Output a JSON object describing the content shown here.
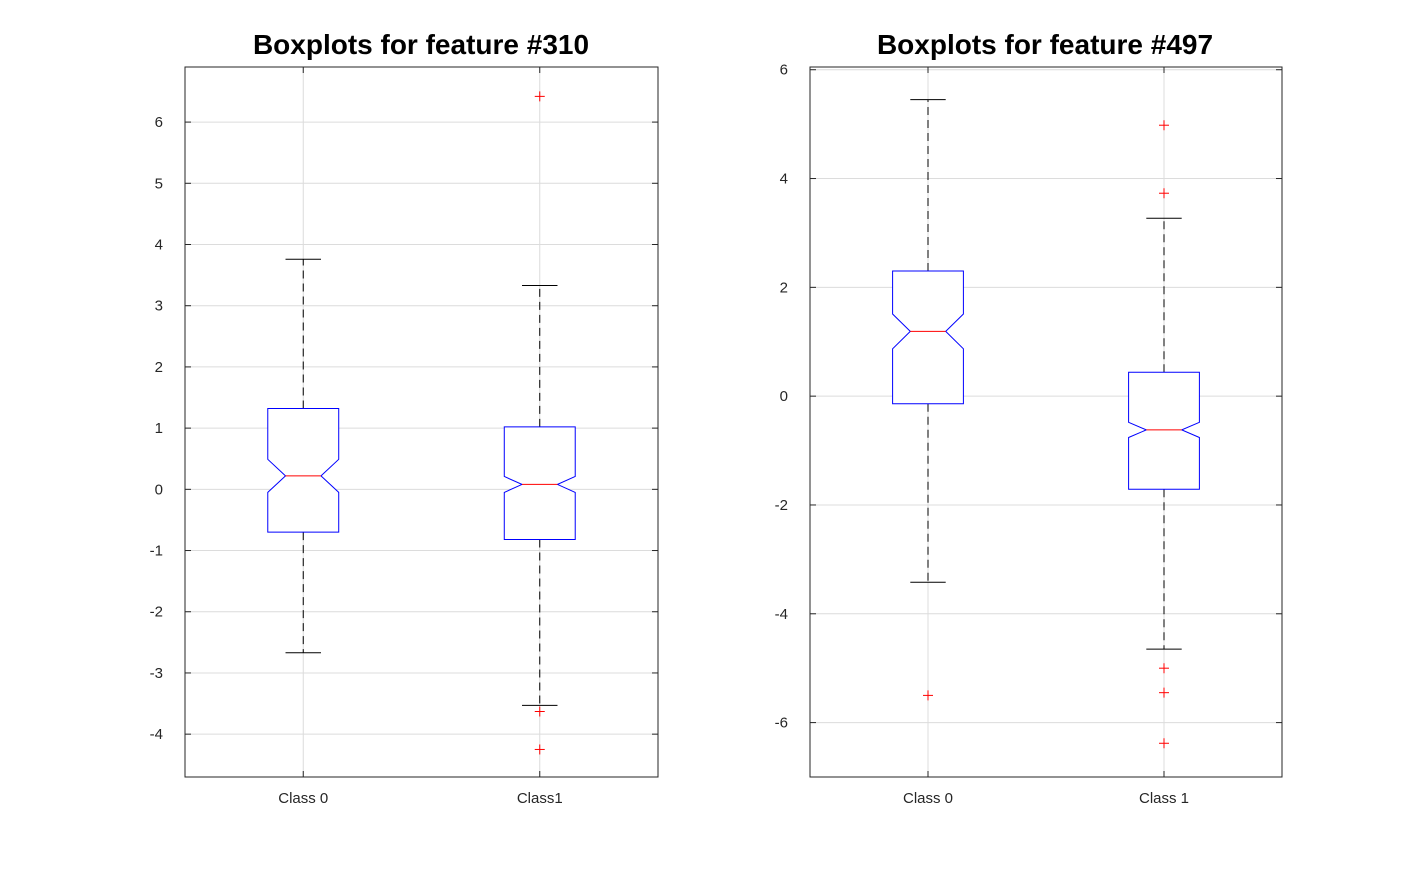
{
  "chart_data": [
    {
      "type": "boxplot",
      "title": "Boxplots for feature #310",
      "xlabel": "",
      "ylabel": "",
      "ylim": [
        -4.7,
        6.9
      ],
      "yticks": [
        -4,
        -3,
        -2,
        -1,
        0,
        1,
        2,
        3,
        4,
        5,
        6
      ],
      "grid": true,
      "notched": true,
      "categories": [
        "Class 0",
        "Class1"
      ],
      "boxes": [
        {
          "category": "Class 0",
          "whisker_low": -2.67,
          "q1": -0.7,
          "notch_low": -0.05,
          "median": 0.22,
          "notch_high": 0.49,
          "q3": 1.32,
          "whisker_high": 3.76,
          "outliers": []
        },
        {
          "category": "Class1",
          "whisker_low": -3.53,
          "q1": -0.82,
          "notch_low": -0.05,
          "median": 0.08,
          "notch_high": 0.21,
          "q3": 1.02,
          "whisker_high": 3.33,
          "outliers": [
            6.42,
            -3.63,
            -4.25
          ]
        }
      ]
    },
    {
      "type": "boxplot",
      "title": "Boxplots for feature #497",
      "xlabel": "",
      "ylabel": "",
      "ylim": [
        -7,
        6.05
      ],
      "yticks": [
        -6,
        -4,
        -2,
        0,
        2,
        4,
        6
      ],
      "grid": true,
      "notched": true,
      "categories": [
        "Class 0",
        "Class 1"
      ],
      "boxes": [
        {
          "category": "Class 0",
          "whisker_low": -3.42,
          "q1": -0.14,
          "notch_low": 0.87,
          "median": 1.19,
          "notch_high": 1.51,
          "q3": 2.3,
          "whisker_high": 5.45,
          "outliers": [
            -5.5
          ]
        },
        {
          "category": "Class 1",
          "whisker_low": -4.65,
          "q1": -1.71,
          "notch_low": -0.76,
          "median": -0.62,
          "notch_high": -0.48,
          "q3": 0.44,
          "whisker_high": 3.27,
          "outliers": [
            4.98,
            3.73,
            -5.0,
            -5.45,
            -6.38
          ]
        }
      ]
    }
  ],
  "style": {
    "box_color": "#0000ff",
    "median_color": "#ff0000",
    "outlier_color": "#ff0000",
    "whisker_color": "#000000",
    "grid_color": "#dcdcdc",
    "axis_color": "#262626"
  }
}
